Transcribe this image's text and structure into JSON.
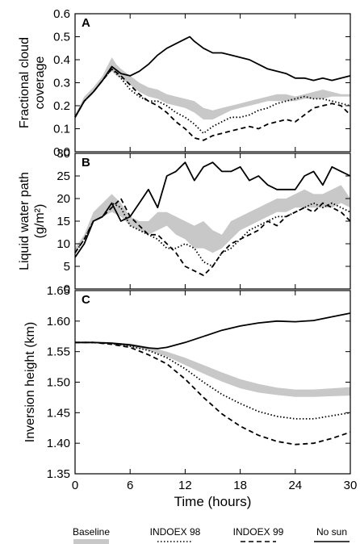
{
  "chart_data": {
    "type": "line",
    "xlabel": "Time (hours)",
    "x_ticks": [
      0,
      6,
      12,
      18,
      24,
      30
    ],
    "xlim": [
      0,
      30
    ],
    "colors": {
      "baseline": "#c8c8c8",
      "lines": "#000000"
    },
    "legend": {
      "placement": "bottom",
      "entries": [
        {
          "key": "baseline",
          "label": "Baseline",
          "style": "band"
        },
        {
          "key": "indoex98",
          "label": "INDOEX 98",
          "style": "dotted"
        },
        {
          "key": "indoex99",
          "label": "INDOEX 99",
          "style": "dashed"
        },
        {
          "key": "nosun",
          "label": "No sun",
          "style": "solid"
        }
      ]
    },
    "panels": [
      {
        "letter": "A",
        "ylabel": [
          "Fractional cloud",
          "coverage"
        ],
        "ylim": [
          0,
          0.6
        ],
        "y_ticks": [
          "0.0",
          "0.1",
          "0.2",
          "0.3",
          "0.4",
          "0.5",
          "0.6"
        ],
        "baseline_band": {
          "x": [
            0,
            1,
            2,
            3,
            3.5,
            4,
            4.5,
            5,
            6,
            7,
            8,
            9,
            10,
            11,
            12,
            13,
            14,
            15,
            16,
            17,
            18,
            19,
            20,
            21,
            22,
            23,
            24,
            25,
            26,
            27,
            28,
            29,
            30
          ],
          "low": [
            0.15,
            0.22,
            0.26,
            0.31,
            0.33,
            0.35,
            0.33,
            0.32,
            0.29,
            0.26,
            0.24,
            0.23,
            0.21,
            0.2,
            0.19,
            0.17,
            0.14,
            0.14,
            0.16,
            0.18,
            0.19,
            0.2,
            0.21,
            0.22,
            0.22,
            0.22,
            0.22,
            0.23,
            0.23,
            0.23,
            0.24,
            0.24,
            0.24
          ],
          "high": [
            0.16,
            0.24,
            0.28,
            0.33,
            0.37,
            0.41,
            0.38,
            0.36,
            0.33,
            0.3,
            0.28,
            0.27,
            0.25,
            0.24,
            0.23,
            0.22,
            0.19,
            0.18,
            0.19,
            0.2,
            0.21,
            0.22,
            0.23,
            0.24,
            0.25,
            0.25,
            0.24,
            0.25,
            0.26,
            0.27,
            0.26,
            0.25,
            0.25
          ]
        },
        "series": [
          {
            "key": "nosun",
            "x": [
              0,
              1,
              2,
              3,
              4,
              5,
              6,
              7,
              8,
              9,
              10,
              11,
              12,
              12.5,
              13,
              14,
              15,
              16,
              17,
              18,
              19,
              20,
              21,
              22,
              23,
              24,
              25,
              26,
              27,
              28,
              29,
              30
            ],
            "y": [
              0.15,
              0.22,
              0.26,
              0.31,
              0.37,
              0.34,
              0.33,
              0.35,
              0.38,
              0.42,
              0.45,
              0.47,
              0.49,
              0.5,
              0.48,
              0.45,
              0.43,
              0.43,
              0.42,
              0.41,
              0.4,
              0.38,
              0.36,
              0.35,
              0.34,
              0.32,
              0.32,
              0.31,
              0.32,
              0.31,
              0.32,
              0.33
            ]
          },
          {
            "key": "indoex98",
            "x": [
              0,
              1,
              2,
              3,
              4,
              5,
              6,
              7,
              8,
              9,
              10,
              11,
              12,
              13,
              14,
              15,
              16,
              17,
              18,
              19,
              20,
              21,
              22,
              23,
              24,
              25,
              26,
              27,
              28,
              29,
              30
            ],
            "y": [
              0.15,
              0.22,
              0.26,
              0.31,
              0.36,
              0.32,
              0.27,
              0.24,
              0.22,
              0.22,
              0.2,
              0.17,
              0.15,
              0.12,
              0.08,
              0.11,
              0.13,
              0.15,
              0.15,
              0.16,
              0.18,
              0.19,
              0.21,
              0.22,
              0.23,
              0.24,
              0.23,
              0.23,
              0.22,
              0.21,
              0.2
            ]
          },
          {
            "key": "indoex99",
            "x": [
              0,
              1,
              2,
              3,
              4,
              5,
              6,
              7,
              8,
              9,
              10,
              11,
              12,
              13,
              14,
              15,
              16,
              17,
              18,
              19,
              20,
              21,
              22,
              23,
              24,
              25,
              26,
              27,
              28,
              29,
              30
            ],
            "y": [
              0.15,
              0.22,
              0.26,
              0.31,
              0.36,
              0.33,
              0.29,
              0.25,
              0.22,
              0.2,
              0.17,
              0.13,
              0.1,
              0.06,
              0.05,
              0.07,
              0.08,
              0.09,
              0.1,
              0.11,
              0.1,
              0.12,
              0.13,
              0.14,
              0.13,
              0.16,
              0.19,
              0.2,
              0.21,
              0.2,
              0.16
            ]
          }
        ]
      },
      {
        "letter": "B",
        "ylabel": [
          "Liquid water path",
          "(g/m²)"
        ],
        "ylim": [
          0,
          30
        ],
        "y_ticks": [
          "0",
          "5",
          "10",
          "15",
          "20",
          "25",
          "30"
        ],
        "baseline_band": {
          "x": [
            0,
            1,
            2,
            3,
            4,
            5,
            6,
            7,
            8,
            9,
            10,
            11,
            12,
            13,
            14,
            15,
            16,
            17,
            18,
            19,
            20,
            21,
            22,
            23,
            24,
            25,
            26,
            27,
            28,
            29,
            30
          ],
          "low": [
            8,
            11,
            15,
            16,
            17,
            16,
            14,
            13,
            12,
            13,
            14,
            12,
            11,
            9,
            9,
            8,
            9,
            11,
            13,
            14,
            15,
            16,
            17,
            17,
            18,
            18,
            18,
            18,
            18,
            19,
            18
          ],
          "high": [
            9,
            12,
            17,
            19,
            21,
            19,
            16,
            15,
            15,
            17,
            17,
            16,
            15,
            14,
            15,
            13,
            12,
            15,
            16,
            17,
            18,
            19,
            20,
            20,
            21,
            22,
            21,
            21,
            22,
            23,
            20
          ]
        },
        "series": [
          {
            "key": "nosun",
            "x": [
              0,
              1,
              2,
              3,
              4,
              5,
              6,
              7,
              8,
              9,
              10,
              11,
              12,
              13,
              14,
              15,
              16,
              17,
              18,
              19,
              20,
              21,
              22,
              23,
              24,
              25,
              26,
              27,
              28,
              29,
              30
            ],
            "y": [
              7,
              10,
              15,
              16,
              19,
              15,
              16,
              19,
              22,
              18,
              25,
              26,
              28,
              24,
              27,
              28,
              26,
              26,
              27,
              24,
              25,
              23,
              22,
              22,
              22,
              25,
              26,
              23,
              27,
              26,
              25
            ]
          },
          {
            "key": "indoex98",
            "x": [
              0,
              1,
              2,
              3,
              4,
              5,
              6,
              7,
              8,
              9,
              10,
              11,
              12,
              13,
              14,
              15,
              16,
              17,
              18,
              19,
              20,
              21,
              22,
              23,
              24,
              25,
              26,
              27,
              28,
              29,
              30
            ],
            "y": [
              8,
              11,
              15,
              16,
              19,
              18,
              14,
              13,
              12,
              11,
              9,
              9,
              10,
              9,
              6,
              5,
              8,
              9,
              11,
              13,
              14,
              15,
              16,
              16,
              17,
              18,
              19,
              18,
              19,
              18,
              17
            ]
          },
          {
            "key": "indoex99",
            "x": [
              0,
              1,
              2,
              3,
              4,
              5,
              6,
              7,
              8,
              9,
              10,
              11,
              12,
              13,
              14,
              15,
              16,
              17,
              18,
              19,
              20,
              21,
              22,
              23,
              24,
              25,
              26,
              27,
              28,
              29,
              30
            ],
            "y": [
              8,
              11,
              15,
              16,
              18,
              20,
              16,
              14,
              12,
              12,
              10,
              8,
              5,
              4,
              3,
              5,
              8,
              10,
              11,
              12,
              13,
              15,
              14,
              16,
              17,
              18,
              17,
              19,
              18,
              17,
              15
            ]
          }
        ]
      },
      {
        "letter": "C",
        "ylabel": [
          "Inversion height (km)"
        ],
        "ylim": [
          1.35,
          1.65
        ],
        "y_ticks": [
          "1.35",
          "1.40",
          "1.45",
          "1.50",
          "1.55",
          "1.60",
          "1.65"
        ],
        "baseline_band": {
          "x": [
            0,
            2,
            4,
            6,
            8,
            10,
            12,
            14,
            16,
            18,
            20,
            22,
            24,
            26,
            28,
            30
          ],
          "low": [
            1.564,
            1.564,
            1.562,
            1.558,
            1.552,
            1.542,
            1.528,
            1.514,
            1.501,
            1.49,
            1.483,
            1.479,
            1.476,
            1.476,
            1.477,
            1.478
          ],
          "high": [
            1.566,
            1.566,
            1.565,
            1.563,
            1.558,
            1.55,
            1.54,
            1.528,
            1.516,
            1.505,
            1.497,
            1.491,
            1.488,
            1.488,
            1.49,
            1.492
          ]
        },
        "series": [
          {
            "key": "nosun",
            "x": [
              0,
              2,
              4,
              6,
              8,
              9,
              10,
              12,
              14,
              16,
              18,
              20,
              22,
              24,
              26,
              28,
              30
            ],
            "y": [
              1.565,
              1.565,
              1.564,
              1.561,
              1.556,
              1.555,
              1.557,
              1.565,
              1.575,
              1.585,
              1.592,
              1.597,
              1.6,
              1.599,
              1.601,
              1.607,
              1.613
            ]
          },
          {
            "key": "indoex98",
            "x": [
              0,
              2,
              4,
              6,
              8,
              10,
              12,
              14,
              16,
              18,
              20,
              22,
              24,
              26,
              28,
              30
            ],
            "y": [
              1.565,
              1.565,
              1.563,
              1.559,
              1.552,
              1.54,
              1.522,
              1.5,
              1.48,
              1.465,
              1.452,
              1.444,
              1.44,
              1.44,
              1.445,
              1.45
            ]
          },
          {
            "key": "indoex99",
            "x": [
              0,
              2,
              4,
              6,
              8,
              10,
              12,
              14,
              16,
              18,
              20,
              22,
              24,
              26,
              28,
              30
            ],
            "y": [
              1.565,
              1.565,
              1.562,
              1.557,
              1.545,
              1.53,
              1.505,
              1.475,
              1.448,
              1.428,
              1.413,
              1.403,
              1.398,
              1.4,
              1.408,
              1.418
            ]
          }
        ]
      }
    ]
  }
}
